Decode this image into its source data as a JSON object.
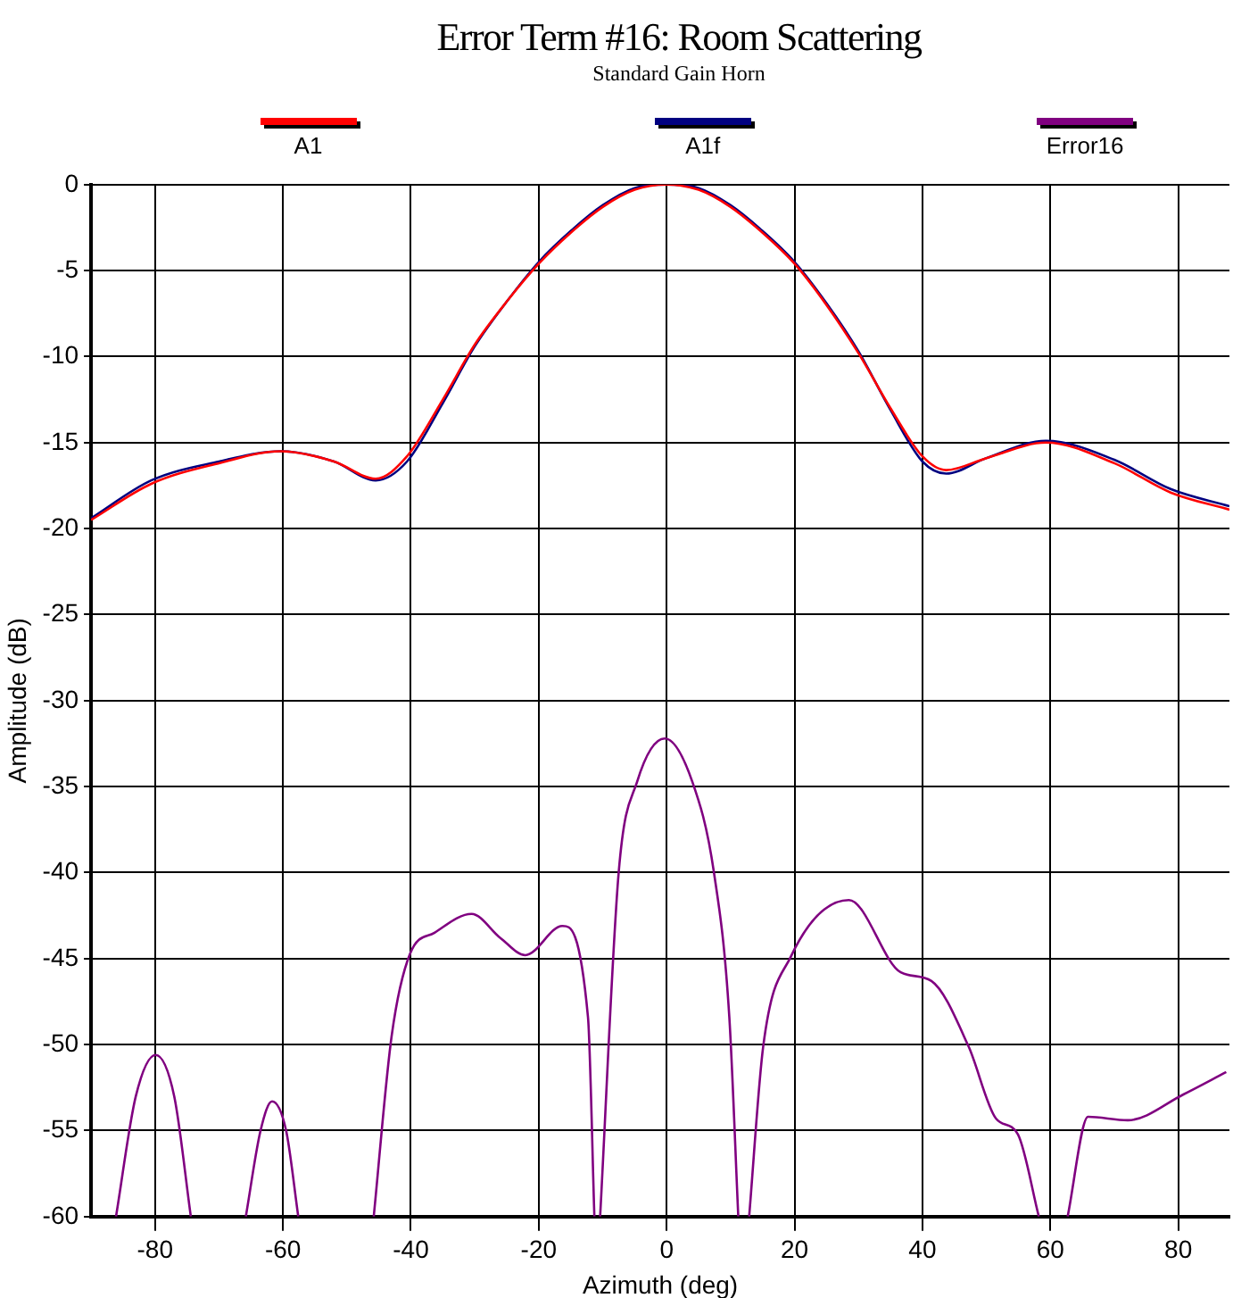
{
  "chart_data": {
    "type": "line",
    "title": "Error Term #16: Room Scattering",
    "subtitle": "Standard Gain Horn",
    "xlabel": "Azimuth (deg)",
    "ylabel": "Amplitude (dB)",
    "xlim": [
      -90,
      88
    ],
    "xticks": [
      -80,
      -60,
      -40,
      -20,
      0,
      20,
      40,
      60,
      80
    ],
    "ylim": [
      -60,
      0
    ],
    "yticks": [
      0,
      -5,
      -10,
      -15,
      -20,
      -25,
      -30,
      -35,
      -40,
      -45,
      -50,
      -55,
      -60
    ],
    "grid": true,
    "legend": "top",
    "marker": "none",
    "line_style": "solid",
    "series": [
      {
        "name": "A1",
        "color": "#ff0000",
        "x": [
          -90,
          -80.6,
          -70,
          -60.4,
          -52,
          -45.5,
          -40.6,
          -35,
          -30,
          -25,
          -20,
          -15,
          -10,
          -5,
          0,
          5,
          10,
          15,
          20,
          25,
          30,
          35,
          40,
          43.7,
          50,
          59.3,
          70,
          78.8,
          88
        ],
        "values": [
          -19.5,
          -17.4,
          -16.2,
          -15.5,
          -16.1,
          -17.1,
          -15.8,
          -12.5,
          -9.3,
          -6.8,
          -4.6,
          -2.8,
          -1.3,
          -0.3,
          0,
          -0.3,
          -1.3,
          -2.8,
          -4.6,
          -7,
          -9.8,
          -13,
          -15.8,
          -16.6,
          -15.9,
          -15,
          -16.2,
          -17.9,
          -18.9
        ]
      },
      {
        "name": "A1f",
        "color": "#000080",
        "x": [
          -90,
          -80.6,
          -70,
          -60.4,
          -52,
          -45.5,
          -40.6,
          -35,
          -30,
          -25,
          -20,
          -15,
          -10,
          -5,
          0,
          5,
          10,
          15,
          20,
          25,
          30,
          35,
          40,
          43.7,
          50,
          59.3,
          70,
          78.8,
          88
        ],
        "values": [
          -19.4,
          -17.2,
          -16.1,
          -15.5,
          -16.1,
          -17.2,
          -16.1,
          -12.7,
          -9.4,
          -6.8,
          -4.5,
          -2.7,
          -1.2,
          -0.2,
          0,
          -0.2,
          -1.2,
          -2.7,
          -4.5,
          -6.9,
          -9.7,
          -13.1,
          -16.1,
          -16.8,
          -15.9,
          -14.9,
          -16.0,
          -17.7,
          -18.7
        ]
      },
      {
        "name": "Error16",
        "color": "#800080",
        "x": [
          -86.1,
          -83,
          -79.9,
          -77,
          -74.4,
          -74,
          -65.8,
          -63.5,
          -61.7,
          -59.5,
          -57.6,
          -57,
          -45.8,
          -43,
          -40.1,
          -36.3,
          -30.5,
          -26,
          -22.1,
          -16.3,
          -12.3,
          -11.3,
          -11,
          -10.4,
          -7.5,
          -4.6,
          -0.3,
          4,
          7.4,
          9.8,
          11.2,
          12,
          12.9,
          15.1,
          19.4,
          28.5,
          36.6,
          41.4,
          47.2,
          51.5,
          54.9,
          58.2,
          60,
          62.7,
          65.9,
          72.1,
          80.8,
          87.5
        ],
        "values": [
          -60,
          -53,
          -50.6,
          -53,
          -60,
          null,
          -60,
          -55,
          -53.3,
          -55,
          -60,
          null,
          -60,
          -49.5,
          -44.7,
          -43.5,
          -42.4,
          -43.8,
          -44.8,
          -43.1,
          -48.4,
          -60,
          null,
          -60,
          -40,
          -34.7,
          -32.2,
          -34.7,
          -40,
          -48.4,
          -60,
          null,
          -60,
          -50.1,
          -44.9,
          -41.6,
          -45.8,
          -46.3,
          -50.1,
          -54.3,
          -55.2,
          -60,
          null,
          -60,
          -54.2,
          -54.4,
          -52.9,
          -51.6
        ]
      }
    ]
  }
}
